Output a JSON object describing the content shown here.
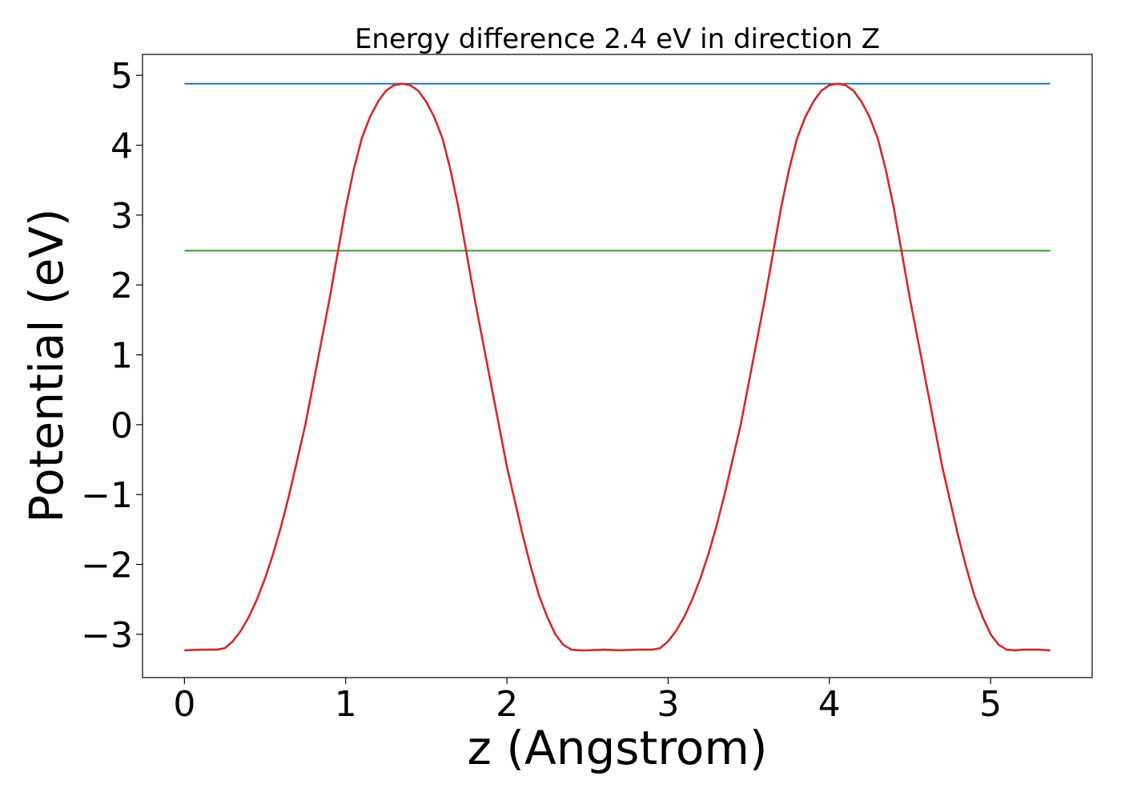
{
  "chart_data": {
    "type": "line",
    "title": "Energy difference 2.4 eV in direction Z",
    "xlabel": "z (Angstrom)",
    "ylabel": "Potential (eV)",
    "xlim": [
      -0.26,
      5.63
    ],
    "ylim": [
      -3.62,
      5.3
    ],
    "x_ticks": [
      0,
      1,
      2,
      3,
      4,
      5
    ],
    "x_tick_labels": [
      "0",
      "1",
      "2",
      "3",
      "4",
      "5"
    ],
    "y_ticks": [
      -3,
      -2,
      -1,
      0,
      1,
      2,
      3,
      4,
      5
    ],
    "y_tick_labels": [
      "−3",
      "−2",
      "−1",
      "0",
      "1",
      "2",
      "3",
      "4",
      "5"
    ],
    "grid": false,
    "series": [
      {
        "color": "#d62728",
        "x": [
          0,
          0.1,
          0.2,
          0.25,
          0.3,
          0.35,
          0.4,
          0.45,
          0.5,
          0.55,
          0.6,
          0.65,
          0.7,
          0.75,
          0.8,
          0.85,
          0.9,
          0.95,
          1.0,
          1.05,
          1.1,
          1.15,
          1.2,
          1.25,
          1.3,
          1.35,
          1.4,
          1.45,
          1.5,
          1.55,
          1.6,
          1.65,
          1.7,
          1.75,
          1.8,
          1.85,
          1.9,
          1.95,
          2.0,
          2.05,
          2.1,
          2.15,
          2.2,
          2.25,
          2.3,
          2.35,
          2.4,
          2.45,
          2.5,
          2.6,
          2.7,
          2.8,
          2.9,
          2.95,
          3.0,
          3.05,
          3.1,
          3.15,
          3.2,
          3.25,
          3.3,
          3.35,
          3.4,
          3.45,
          3.5,
          3.55,
          3.6,
          3.65,
          3.7,
          3.75,
          3.8,
          3.85,
          3.9,
          3.95,
          4.0,
          4.05,
          4.1,
          4.15,
          4.2,
          4.25,
          4.3,
          4.35,
          4.4,
          4.45,
          4.5,
          4.55,
          4.6,
          4.65,
          4.7,
          4.75,
          4.8,
          4.85,
          4.9,
          4.95,
          5.0,
          5.05,
          5.1,
          5.15,
          5.2,
          5.3,
          5.37
        ],
        "y": [
          -3.23,
          -3.22,
          -3.22,
          -3.2,
          -3.1,
          -2.95,
          -2.75,
          -2.5,
          -2.2,
          -1.85,
          -1.45,
          -1.0,
          -0.5,
          0.0,
          0.6,
          1.2,
          1.8,
          2.45,
          3.1,
          3.65,
          4.1,
          4.4,
          4.62,
          4.78,
          4.86,
          4.88,
          4.86,
          4.78,
          4.62,
          4.4,
          4.1,
          3.65,
          3.1,
          2.45,
          1.8,
          1.2,
          0.6,
          0.0,
          -0.6,
          -1.1,
          -1.6,
          -2.05,
          -2.45,
          -2.75,
          -3.0,
          -3.15,
          -3.22,
          -3.23,
          -3.23,
          -3.22,
          -3.23,
          -3.22,
          -3.22,
          -3.2,
          -3.1,
          -2.95,
          -2.75,
          -2.5,
          -2.2,
          -1.85,
          -1.45,
          -1.0,
          -0.5,
          0.0,
          0.6,
          1.2,
          1.8,
          2.45,
          3.1,
          3.65,
          4.1,
          4.4,
          4.62,
          4.78,
          4.86,
          4.88,
          4.86,
          4.78,
          4.62,
          4.4,
          4.1,
          3.65,
          3.1,
          2.45,
          1.8,
          1.2,
          0.6,
          0.0,
          -0.6,
          -1.1,
          -1.6,
          -2.05,
          -2.45,
          -2.75,
          -3.0,
          -3.15,
          -3.22,
          -3.23,
          -3.22,
          -3.22,
          -3.23
        ]
      },
      {
        "color": "#1f77b4",
        "x": [
          0,
          5.37
        ],
        "y": [
          4.88,
          4.88
        ]
      },
      {
        "color": "#2ca02c",
        "x": [
          0,
          5.37
        ],
        "y": [
          2.49,
          2.49
        ]
      }
    ]
  }
}
